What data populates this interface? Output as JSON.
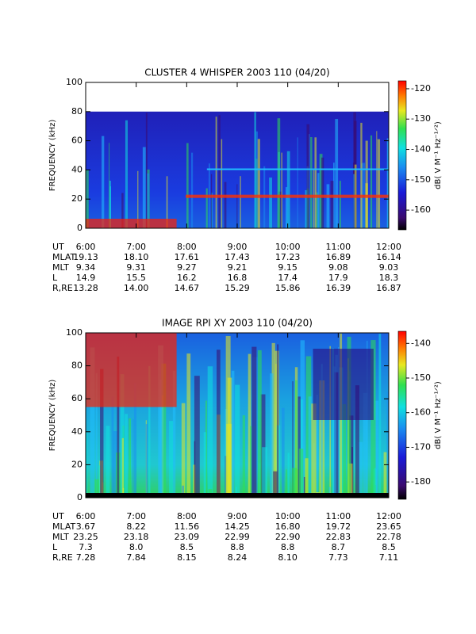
{
  "chart_data": [
    {
      "type": "spectrogram",
      "title": "CLUSTER 4 WHISPER 2003 110 (04/20)",
      "y_label": "FREQUENCY (kHz)",
      "ylim": [
        0,
        100
      ],
      "yticks": [
        0,
        20,
        40,
        60,
        80,
        100
      ],
      "xticks": [
        "6:00",
        "7:00",
        "8:00",
        "9:00",
        "10:00",
        "11:00",
        "12:00"
      ],
      "colorbar_label": "dB( V M⁻¹ Hz⁻¹ᐟ²)",
      "zlim": [
        -166.5,
        -117.4
      ],
      "zticks": [
        -160,
        -150,
        -140,
        -130,
        -120
      ],
      "ephemeris": {
        "time_label": "UT",
        "rows": [
          {
            "label": "MLAT",
            "values": [
              "19.13",
              "18.10",
              "17.61",
              "17.43",
              "17.23",
              "16.89",
              "16.14"
            ]
          },
          {
            "label": "MLT",
            "values": [
              "9.34",
              "9.31",
              "9.27",
              "9.21",
              "9.15",
              "9.08",
              "9.03"
            ]
          },
          {
            "label": "L",
            "values": [
              "14.9",
              "15.5",
              "16.2",
              "16.8",
              "17.4",
              "17.9",
              "18.3"
            ]
          },
          {
            "label": "R,RE",
            "values": [
              "13.28",
              "14.00",
              "14.67",
              "15.29",
              "15.86",
              "16.39",
              "16.87"
            ]
          }
        ]
      }
    },
    {
      "type": "spectrogram",
      "title": "IMAGE RPI XY 2003 110 (04/20)",
      "y_label": "FREQUENCY (kHz)",
      "ylim": [
        0,
        100
      ],
      "yticks": [
        0,
        20,
        40,
        60,
        80,
        100
      ],
      "xticks": [
        "6:00",
        "7:00",
        "8:00",
        "9:00",
        "10:00",
        "11:00",
        "12:00"
      ],
      "colorbar_label": "dB( V M⁻¹ Hz⁻¹ᐟ²)",
      "zlim": [
        -185,
        -136.5
      ],
      "zticks": [
        -180,
        -170,
        -160,
        -150,
        -140
      ],
      "ephemeris": {
        "time_label": "UT",
        "rows": [
          {
            "label": "MLAT",
            "values": [
              "3.67",
              "8.22",
              "11.56",
              "14.25",
              "16.80",
              "19.72",
              "23.65"
            ]
          },
          {
            "label": "MLT",
            "values": [
              "23.25",
              "23.18",
              "23.09",
              "22.99",
              "22.90",
              "22.83",
              "22.78"
            ]
          },
          {
            "label": "L",
            "values": [
              "7.3",
              "8.0",
              "8.5",
              "8.8",
              "8.8",
              "8.7",
              "8.5"
            ]
          },
          {
            "label": "R,RE",
            "values": [
              "7.28",
              "7.84",
              "8.15",
              "8.24",
              "8.10",
              "7.73",
              "7.11"
            ]
          }
        ]
      }
    }
  ]
}
